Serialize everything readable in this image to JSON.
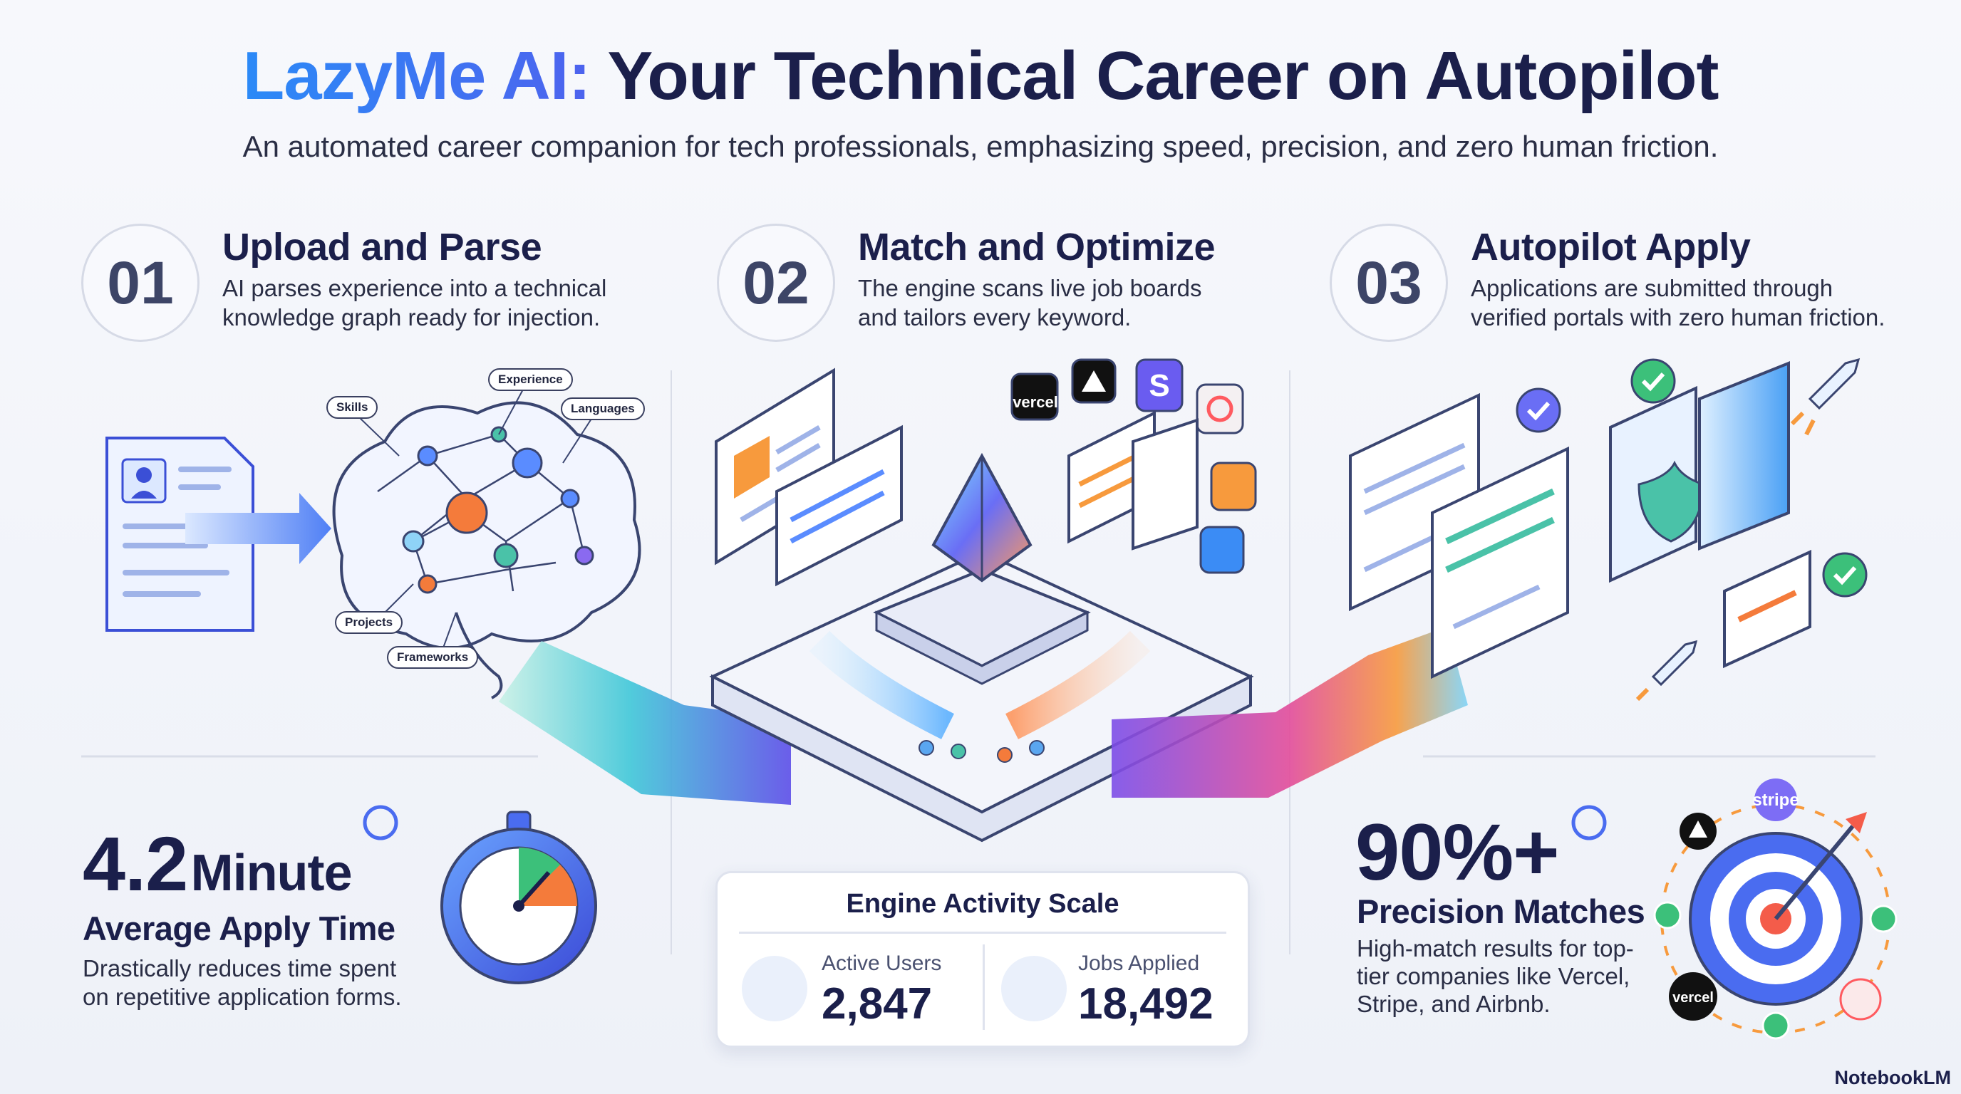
{
  "header": {
    "title_brand": "LazyMe AI:",
    "title_rest": "Your Technical Career on Autopilot",
    "subtitle": "An automated career companion for tech professionals, emphasizing speed, precision, and zero human friction."
  },
  "steps": [
    {
      "number": "01",
      "title": "Upload and Parse",
      "description": "AI parses experience into a technical knowledge graph ready for injection."
    },
    {
      "number": "02",
      "title": "Match and Optimize",
      "description": "The engine scans live job boards and tailors every keyword."
    },
    {
      "number": "03",
      "title": "Autopilot Apply",
      "description": "Applications are submitted through verified portals with zero human friction."
    }
  ],
  "knowledge_graph": {
    "labels": [
      "Skills",
      "Experience",
      "Languages",
      "Projects",
      "Frameworks"
    ]
  },
  "logos": {
    "match": [
      "vercel",
      "S"
    ],
    "target": [
      "stripe",
      "vercel"
    ]
  },
  "stats": {
    "apply_time": {
      "value": "4.2",
      "unit": "Minute",
      "label": "Average Apply Time",
      "description": "Drastically reduces time spent on repetitive application forms."
    },
    "engine": {
      "title": "Engine Activity Scale",
      "metrics": [
        {
          "label": "Active Users",
          "value": "2,847"
        },
        {
          "label": "Jobs Applied",
          "value": "18,492"
        }
      ]
    },
    "precision": {
      "value": "90%+",
      "label": "Precision Matches",
      "description": "High-match results for top-tier companies like Vercel, Stripe, and Airbnb."
    }
  },
  "footer": {
    "brand": "NotebookLM"
  }
}
